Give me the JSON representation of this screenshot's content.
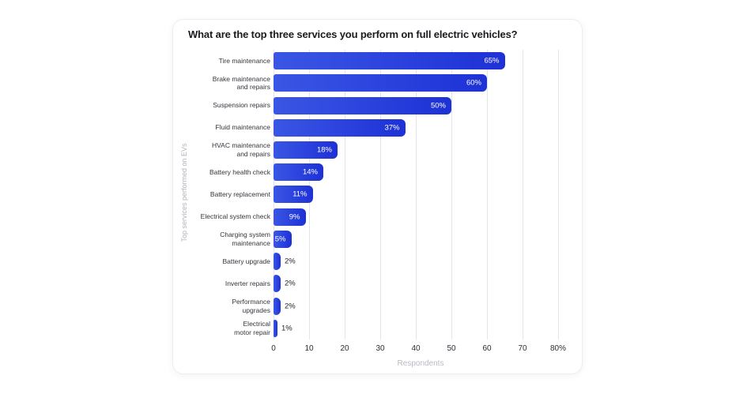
{
  "chart_data": {
    "type": "bar",
    "orientation": "horizontal",
    "title": "What are the top three services you perform on full electric vehicles?",
    "xlabel": "Respondents",
    "ylabel": "Top services performed on EVs",
    "categories": [
      "Tire maintenance",
      "Brake maintenance\nand repairs",
      "Suspension repairs",
      "Fluid maintenance",
      "HVAC maintenance\nand repairs",
      "Battery health check",
      "Battery replacement",
      "Electrical system check",
      "Charging system\nmaintenance",
      "Battery upgrade",
      "Inverter repairs",
      "Performance\nupgrades",
      "Electrical\nmotor repair"
    ],
    "values": [
      65,
      60,
      50,
      37,
      18,
      14,
      11,
      9,
      5,
      2,
      2,
      2,
      1
    ],
    "value_labels": [
      "65%",
      "60%",
      "50%",
      "37%",
      "18%",
      "14%",
      "11%",
      "9%",
      "5%",
      "2%",
      "2%",
      "2%",
      "1%"
    ],
    "xticks": [
      "0",
      "10",
      "20",
      "30",
      "40",
      "50",
      "60",
      "70",
      "80%"
    ],
    "xlim": [
      0,
      82.5
    ],
    "grid": "vertical",
    "legend": "none",
    "inside_label_threshold": 5,
    "colors": {
      "bar_gradient_start": "#3a56e4",
      "bar_gradient_end": "#1e31d6",
      "gridline": "#e4e5ea",
      "value_inside": "#ffffff",
      "value_outside": "#26262e",
      "axis_text": "#2e2e36",
      "muted_text": "#b3b3bc",
      "title_text": "#1b1b1f"
    }
  }
}
